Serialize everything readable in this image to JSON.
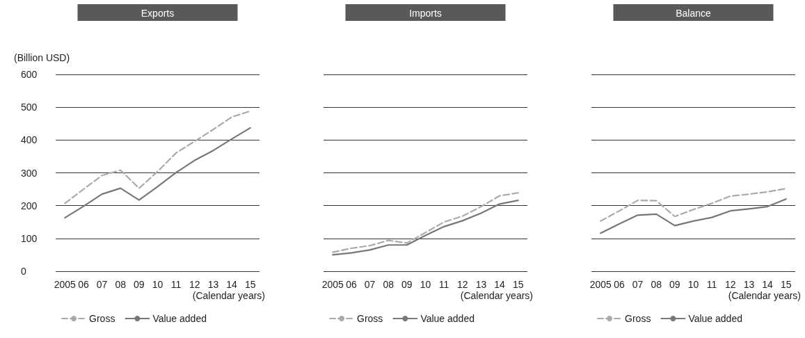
{
  "chart_data": [
    {
      "type": "line",
      "title": "Exports",
      "ylabel": "(Billion USD)",
      "xlabel": "(Calendar years)",
      "categories": [
        "2005",
        "06",
        "07",
        "08",
        "09",
        "10",
        "11",
        "12",
        "13",
        "14",
        "15"
      ],
      "ylim": [
        0,
        600
      ],
      "yticks": [
        0,
        100,
        200,
        300,
        400,
        500,
        600
      ],
      "grid": "y",
      "legend": "bottom",
      "marker": "none",
      "series": [
        {
          "name": "Gross",
          "color": "#aaaaaa",
          "line_style": "dashed",
          "values": [
            207,
            250,
            292,
            308,
            253,
            304,
            361,
            396,
            432,
            470,
            488
          ]
        },
        {
          "name": "Value added",
          "color": "#777777",
          "line_style": "solid",
          "values": [
            163,
            198,
            235,
            253,
            217,
            258,
            301,
            338,
            368,
            403,
            437
          ]
        }
      ]
    },
    {
      "type": "line",
      "title": "Imports",
      "xlabel": "(Calendar years)",
      "categories": [
        "2005",
        "06",
        "07",
        "08",
        "09",
        "10",
        "11",
        "12",
        "13",
        "14",
        "15"
      ],
      "ylim": [
        0,
        600
      ],
      "yticks": [
        0,
        100,
        200,
        300,
        400,
        500,
        600
      ],
      "tick_labels": "x",
      "grid": "y",
      "legend": "bottom",
      "marker": "none",
      "series": [
        {
          "name": "Gross",
          "color": "#aaaaaa",
          "line_style": "dashed",
          "values": [
            58,
            70,
            78,
            94,
            86,
            118,
            150,
            168,
            197,
            230,
            239
          ]
        },
        {
          "name": "Value added",
          "color": "#777777",
          "line_style": "solid",
          "values": [
            50,
            56,
            65,
            80,
            80,
            109,
            136,
            154,
            177,
            205,
            216
          ]
        }
      ]
    },
    {
      "type": "line",
      "title": "Balance",
      "xlabel": "(Calendar years)",
      "categories": [
        "2005",
        "06",
        "07",
        "08",
        "09",
        "10",
        "11",
        "12",
        "13",
        "14",
        "15"
      ],
      "ylim": [
        0,
        600
      ],
      "yticks": [
        0,
        100,
        200,
        300,
        400,
        500,
        600
      ],
      "tick_labels": "x",
      "grid": "y",
      "legend": "bottom",
      "marker": "none",
      "series": [
        {
          "name": "Gross",
          "color": "#aaaaaa",
          "line_style": "dashed",
          "values": [
            153,
            184,
            216,
            215,
            167,
            188,
            207,
            229,
            235,
            242,
            252
          ]
        },
        {
          "name": "Value added",
          "color": "#777777",
          "line_style": "solid",
          "values": [
            116,
            144,
            171,
            174,
            139,
            153,
            164,
            184,
            190,
            197,
            220
          ]
        }
      ]
    }
  ]
}
